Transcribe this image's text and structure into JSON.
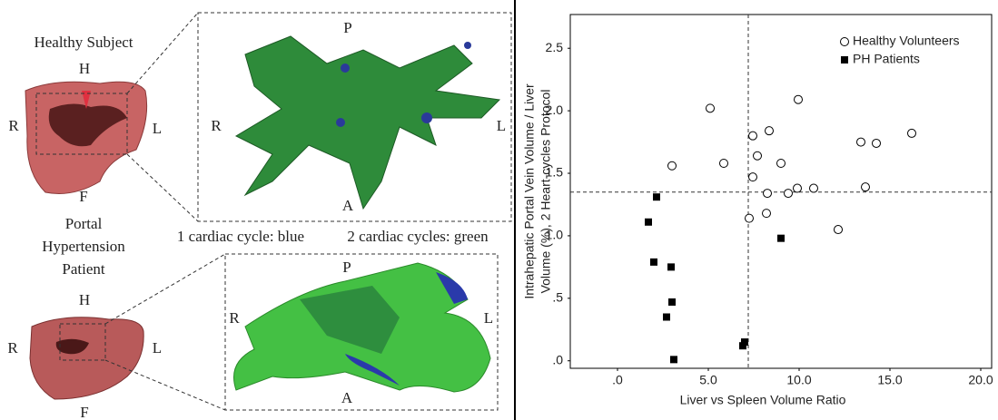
{
  "figure": {
    "healthy": {
      "title": "Healthy Subject",
      "liver_labels": [
        "H",
        "R",
        "L",
        "F"
      ],
      "zoom_labels": [
        "P",
        "R",
        "L",
        "A"
      ]
    },
    "caption_blue": "1 cardiac cycle: blue",
    "caption_green": "2 cardiac cycles: green",
    "patient": {
      "title_lines": [
        "Portal",
        "Hypertension",
        "Patient"
      ],
      "liver_labels": [
        "H",
        "R",
        "L",
        "F"
      ],
      "zoom_labels": [
        "P",
        "R",
        "L",
        "A"
      ]
    }
  },
  "chart_data": {
    "type": "scatter",
    "xlabel": "Liver vs Spleen Volume Ratio",
    "ylabel": [
      "Intrahepatic Portal Vein Volume / Liver",
      "Volume (%), 2 Heart-cycles Protocol"
    ],
    "xlim": [
      -2.6,
      20.6
    ],
    "ylim": [
      -0.06,
      2.77
    ],
    "xticks": [
      {
        "value": 0,
        "label": ".0"
      },
      {
        "value": 5,
        "label": "5.0"
      },
      {
        "value": 10,
        "label": "10.0"
      },
      {
        "value": 15,
        "label": "15.0"
      },
      {
        "value": 20,
        "label": "20.0"
      }
    ],
    "yticks": [
      {
        "value": 0,
        "label": ".0"
      },
      {
        "value": 0.5,
        "label": ".5"
      },
      {
        "value": 1,
        "label": "1.0"
      },
      1.5,
      {
        "value": 2,
        "label": "2.0"
      },
      2.5
    ],
    "vlines": [
      7.2
    ],
    "hlines": [
      1.35
    ],
    "legend": "upper right",
    "series": [
      {
        "name": "Healthy Volunteers",
        "marker": "circle",
        "color": "#000000",
        "x": [
          3.0,
          5.1,
          5.85,
          7.45,
          7.7,
          7.45,
          7.25,
          8.35,
          8.25,
          8.2,
          9.0,
          9.4,
          9.95,
          9.9,
          10.8,
          12.15,
          13.4,
          13.65,
          14.25,
          16.2
        ],
        "values": [
          1.56,
          2.02,
          1.58,
          1.8,
          1.64,
          1.47,
          1.14,
          1.84,
          1.34,
          1.18,
          1.58,
          1.34,
          2.09,
          1.38,
          1.38,
          1.05,
          1.75,
          1.39,
          1.74,
          1.82
        ]
      },
      {
        "name": "PH Patients",
        "marker": "square",
        "color": "#000000",
        "x": [
          2.15,
          1.7,
          2.0,
          2.95,
          3.0,
          2.7,
          3.1,
          9.0,
          6.9,
          7.0
        ],
        "values": [
          1.31,
          1.11,
          0.79,
          0.75,
          0.47,
          0.35,
          0.01,
          0.98,
          0.12,
          0.15
        ]
      }
    ]
  }
}
